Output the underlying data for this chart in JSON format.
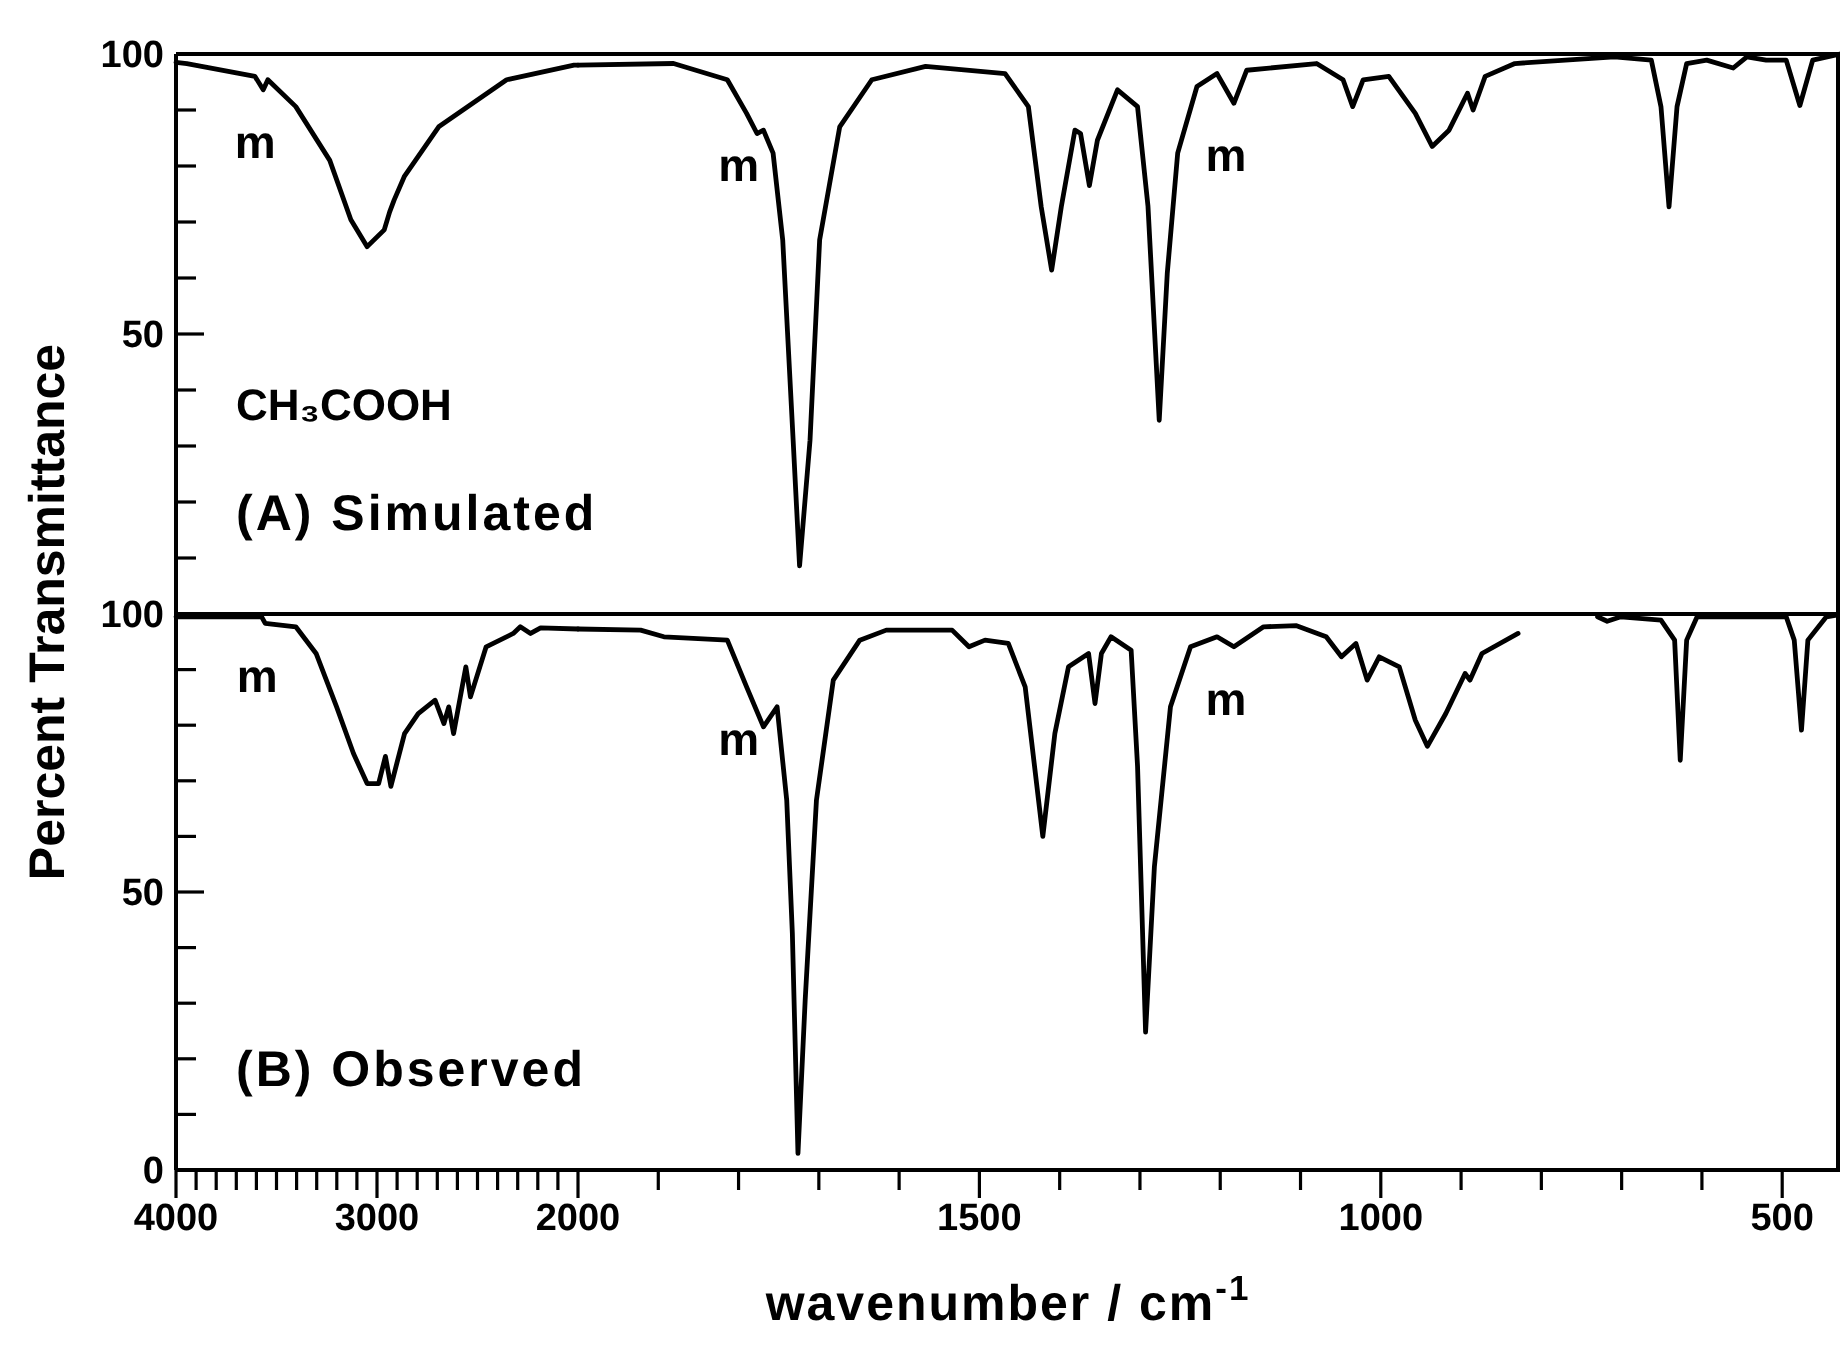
{
  "chart_data": [
    {
      "type": "line",
      "ylabel": "Percent Transmittance",
      "tick_labels": "y",
      "xlim": [
        4000,
        2000
      ],
      "ylim": [
        0,
        100
      ],
      "yticks": [
        {
          "value": 0,
          "label": null
        },
        {
          "value": 10,
          "label": null
        },
        {
          "value": 20,
          "label": null
        },
        {
          "value": 30,
          "label": null
        },
        {
          "value": 40,
          "label": null
        },
        50,
        {
          "value": 60,
          "label": null
        },
        {
          "value": 70,
          "label": null
        },
        {
          "value": 80,
          "label": null
        },
        {
          "value": 90,
          "label": null
        },
        100
      ],
      "x": [
        4000,
        3946,
        3607,
        3566,
        3543,
        3404,
        3235,
        3130,
        3049,
        2964,
        2937,
        2914,
        2863,
        2693,
        2355,
        2020,
        2000
      ],
      "series": [
        {
          "color": "#000000",
          "values": [
            98.5,
            98.3,
            96,
            93.6,
            95.4,
            90.6,
            81,
            70.4,
            65.6,
            68.6,
            71.8,
            74,
            78.2,
            87,
            95.4,
            98,
            98
          ]
        }
      ],
      "annotations": [
        {
          "text": "m",
          "x": 3566,
          "y": 93.6
        },
        "CH₃COOH",
        "(A) Simulated"
      ]
    },
    {
      "type": "line",
      "tick_labels": false,
      "xlim": [
        2000,
        428
      ],
      "ylim": [
        0,
        100
      ],
      "yticks": [
        {
          "value": 0,
          "label": null
        }
      ],
      "x": [
        2000,
        1881,
        1814,
        1790,
        1777,
        1769,
        1757,
        1745,
        1732,
        1724,
        1711,
        1699,
        1674,
        1634,
        1567,
        1468,
        1439,
        1423,
        1410,
        1398,
        1381,
        1374,
        1363,
        1353,
        1328,
        1303,
        1290,
        1276,
        1266,
        1253,
        1229,
        1204,
        1183,
        1167,
        1080,
        1047,
        1035,
        1022,
        990,
        957,
        936,
        915,
        892,
        885,
        870,
        833,
        709,
        663,
        651,
        641,
        631,
        619,
        594,
        561,
        544,
        520,
        495,
        478,
        462,
        428
      ],
      "series": [
        {
          "color": "#000000",
          "values": [
            98,
            98.3,
            95.4,
            89.4,
            85.8,
            86.4,
            82.3,
            66.8,
            31,
            8.6,
            31,
            66.8,
            87,
            95.4,
            97.8,
            96.5,
            90.6,
            72.7,
            61.4,
            72.7,
            86.4,
            85.8,
            76.5,
            84.6,
            93.6,
            90.6,
            72.8,
            34.6,
            60.8,
            82.3,
            94.2,
            96.5,
            91.2,
            97.1,
            98.3,
            95.4,
            90.6,
            95.4,
            96,
            89.4,
            83.5,
            86.4,
            93,
            90,
            96,
            98.3,
            99.5,
            98.9,
            90.6,
            72.7,
            90.6,
            98.3,
            98.9,
            97.5,
            99.5,
            98.9,
            98.9,
            90.8,
            98.9,
            100
          ]
        }
      ],
      "annotations": [
        {
          "text": "m",
          "x": 1790,
          "y": 89.4
        },
        {
          "text": "m",
          "x": 1183,
          "y": 91.2
        }
      ]
    },
    {
      "type": "line",
      "xlim": [
        4000,
        2000
      ],
      "ylim": [
        0,
        100
      ],
      "xticks": [
        4000,
        {
          "value": 3900,
          "label": null
        },
        {
          "value": 3800,
          "label": null
        },
        {
          "value": 3700,
          "label": null
        },
        {
          "value": 3600,
          "label": null
        },
        {
          "value": 3500,
          "label": null
        },
        {
          "value": 3400,
          "label": null
        },
        {
          "value": 3300,
          "label": null
        },
        {
          "value": 3200,
          "label": null
        },
        {
          "value": 3100,
          "label": null
        },
        3000,
        {
          "value": 2900,
          "label": null
        },
        {
          "value": 2800,
          "label": null
        },
        {
          "value": 2700,
          "label": null
        },
        {
          "value": 2600,
          "label": null
        },
        {
          "value": 2500,
          "label": null
        },
        {
          "value": 2400,
          "label": null
        },
        {
          "value": 2300,
          "label": null
        },
        {
          "value": 2200,
          "label": null
        },
        {
          "value": 2100,
          "label": null
        },
        2000
      ],
      "yticks": [
        0,
        {
          "value": 10,
          "label": null
        },
        {
          "value": 20,
          "label": null
        },
        {
          "value": 30,
          "label": null
        },
        {
          "value": 40,
          "label": null
        },
        50,
        {
          "value": 60,
          "label": null
        },
        {
          "value": 70,
          "label": null
        },
        {
          "value": 80,
          "label": null
        },
        {
          "value": 90,
          "label": null
        },
        100
      ],
      "x": [
        4000,
        3962,
        3574,
        3556,
        3404,
        3303,
        3201,
        3117,
        3049,
        2992,
        2958,
        2931,
        2863,
        2795,
        2711,
        2667,
        2643,
        2619,
        2558,
        2535,
        2457,
        2322,
        2287,
        2236,
        2186,
        2000
      ],
      "series": [
        {
          "color": "#000000",
          "values": [
            99.5,
            99.5,
            99.5,
            98.3,
            97.7,
            92.9,
            83.3,
            74.9,
            69.5,
            69.5,
            74.4,
            69,
            78.5,
            82.1,
            84.5,
            80.3,
            83.3,
            78.5,
            90.5,
            85.1,
            94.1,
            96.5,
            97.7,
            96.5,
            97.5,
            97.3
          ]
        }
      ],
      "annotations": [
        {
          "text": "m",
          "x": 3556,
          "y": 98.3
        },
        "(B) Observed"
      ]
    },
    {
      "type": "line",
      "tick_labels": "x",
      "xlabel": "wavenumber / cm$^{-1}$",
      "xlim": [
        2000,
        428
      ],
      "ylim": [
        0,
        100
      ],
      "xticks": [
        {
          "value": 1900,
          "label": null
        },
        {
          "value": 1800,
          "label": null
        },
        {
          "value": 1700,
          "label": null
        },
        {
          "value": 1600,
          "label": null
        },
        1500,
        {
          "value": 1400,
          "label": null
        },
        {
          "value": 1300,
          "label": null
        },
        {
          "value": 1200,
          "label": null
        },
        {
          "value": 1100,
          "label": null
        },
        1000,
        {
          "value": 900,
          "label": null
        },
        {
          "value": 800,
          "label": null
        },
        {
          "value": 700,
          "label": null
        },
        {
          "value": 600,
          "label": null
        },
        500
      ],
      "x": [
        2000,
        1922,
        1893,
        1814,
        1790,
        1769,
        1752,
        1740,
        1733,
        1726,
        1717,
        1703,
        1682,
        1649,
        1616,
        1534,
        1513,
        1493,
        1464,
        1443,
        1421,
        1406,
        1389,
        1364,
        1356,
        1348,
        1336,
        1311,
        1303,
        1293,
        1282,
        1262,
        1237,
        1204,
        1183,
        1146,
        1105,
        1068,
        1049,
        1031,
        1017,
        1002,
        977,
        957,
        942,
        919,
        895,
        889,
        874,
        829,
        780,
        730,
        718,
        701,
        651,
        634,
        627,
        619,
        606,
        495,
        485,
        476,
        468,
        445,
        428
      ],
      "series": [
        {
          "color": "#000000",
          "values": [
            97.3,
            97.1,
            95.9,
            95.3,
            86.9,
            79.7,
            83.3,
            66.5,
            42.6,
            3,
            30.6,
            66.5,
            88.1,
            95.3,
            97.1,
            97.1,
            94.1,
            95.3,
            94.7,
            86.9,
            60,
            78.5,
            90.5,
            92.9,
            83.9,
            92.9,
            95.9,
            93.5,
            72.6,
            24.8,
            54.6,
            83.3,
            94.1,
            95.9,
            94.1,
            97.7,
            97.9,
            95.9,
            92.3,
            94.7,
            88.1,
            92.3,
            90.5,
            80.9,
            76.2,
            82.1,
            89.3,
            88.1,
            92.9,
            96.5,
            null,
            99.5,
            98.7,
            99.5,
            98.9,
            95.3,
            73.7,
            95.3,
            99.5,
            99.5,
            95.3,
            79.1,
            95.3,
            99.5,
            99.9
          ]
        }
      ],
      "annotations": [
        {
          "text": "m",
          "x": 1790,
          "y": 86.9
        },
        {
          "text": "m",
          "x": 1183,
          "y": 94.1
        }
      ]
    }
  ]
}
